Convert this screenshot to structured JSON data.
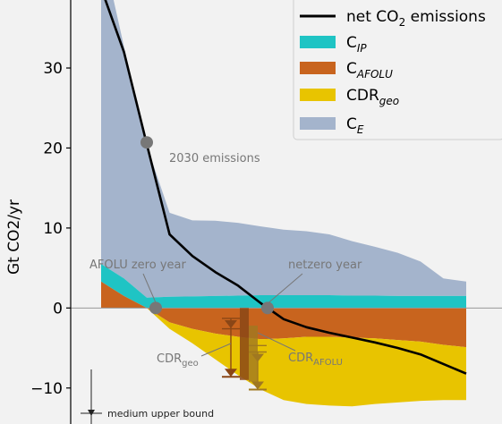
{
  "chart_data": {
    "type": "area",
    "ylabel": "Gt CO2/yr",
    "xlim": [
      2020,
      2100
    ],
    "ylim": [
      -14.5,
      38.5
    ],
    "yticks": [
      -10,
      0,
      10,
      20,
      30
    ],
    "grid": false,
    "legend_position": "top-right",
    "colors": {
      "net": "#000000",
      "CIP": "#1fc4c4",
      "CAFOLU": "#c8641e",
      "CDRgeo": "#e8c400",
      "CE": "#a4b4cc",
      "marker": "#777777",
      "cdr_geo_bar": "#8a4616",
      "cdr_afolu_bar": "#a07820"
    },
    "x": [
      2020,
      2025,
      2030,
      2035,
      2040,
      2045,
      2050,
      2055,
      2060,
      2065,
      2070,
      2075,
      2080,
      2085,
      2090,
      2095,
      2100
    ],
    "series": [
      {
        "name": "C_E",
        "stack_on": "C_IP",
        "values": [
          40.0,
          29.0,
          19.0,
          10.5,
          9.5,
          9.4,
          9.1,
          8.6,
          8.2,
          8.0,
          7.6,
          6.8,
          6.1,
          5.4,
          4.3,
          2.2,
          1.8
        ]
      },
      {
        "name": "C_IP",
        "stack_on": "C_AFOLU_pos",
        "values": [
          2.2,
          2.2,
          1.3,
          1.4,
          1.45,
          1.5,
          1.55,
          1.6,
          1.6,
          1.6,
          1.6,
          1.55,
          1.55,
          1.5,
          1.5,
          1.5,
          1.5
        ]
      },
      {
        "name": "C_AFOLU",
        "values": [
          3.3,
          1.5,
          0.0,
          -1.8,
          -2.6,
          -3.2,
          -3.6,
          -3.9,
          -3.8,
          -3.6,
          -3.6,
          -3.7,
          -3.8,
          -4.0,
          -4.2,
          -4.6,
          -4.9
        ]
      },
      {
        "name": "CDR_geo",
        "values": [
          0.0,
          0.0,
          0.0,
          -0.8,
          -1.8,
          -3.2,
          -4.8,
          -6.3,
          -7.7,
          -8.4,
          -8.6,
          -8.6,
          -8.2,
          -7.8,
          -7.4,
          -6.9,
          -6.6
        ]
      },
      {
        "name": "net CO2 emissions",
        "values": [
          40.0,
          32.0,
          20.5,
          9.2,
          6.5,
          4.5,
          2.8,
          0.6,
          -1.4,
          -2.4,
          -3.1,
          -3.7,
          -4.3,
          -5.0,
          -5.8,
          -7.0,
          -8.2
        ]
      }
    ],
    "markers": [
      {
        "x": 2030,
        "y": 20.7,
        "label": "2030 emissions"
      },
      {
        "x": 2032,
        "y": 0.0,
        "label": "AFOLU zero year"
      },
      {
        "x": 2057,
        "y": 0.0,
        "label": "netzero year"
      }
    ],
    "annotations": {
      "cdr_geo": {
        "main": "CDR",
        "sub": "geo"
      },
      "cdr_afolu": {
        "main": "CDR",
        "sub": "AFOLU"
      },
      "medium_upper_bound": "medium upper bound"
    },
    "legend": [
      {
        "main": "net CO",
        "sub": "2",
        "tail": " emissions",
        "kind": "line"
      },
      {
        "main": "C",
        "sub": "IP",
        "kind": "patch",
        "color_key": "CIP"
      },
      {
        "main": "C",
        "sub": "AFOLU",
        "kind": "patch",
        "color_key": "CAFOLU"
      },
      {
        "main": "CDR",
        "sub": "geo",
        "kind": "patch",
        "color_key": "CDRgeo"
      },
      {
        "main": "C",
        "sub": "E",
        "kind": "patch",
        "color_key": "CE"
      }
    ]
  }
}
